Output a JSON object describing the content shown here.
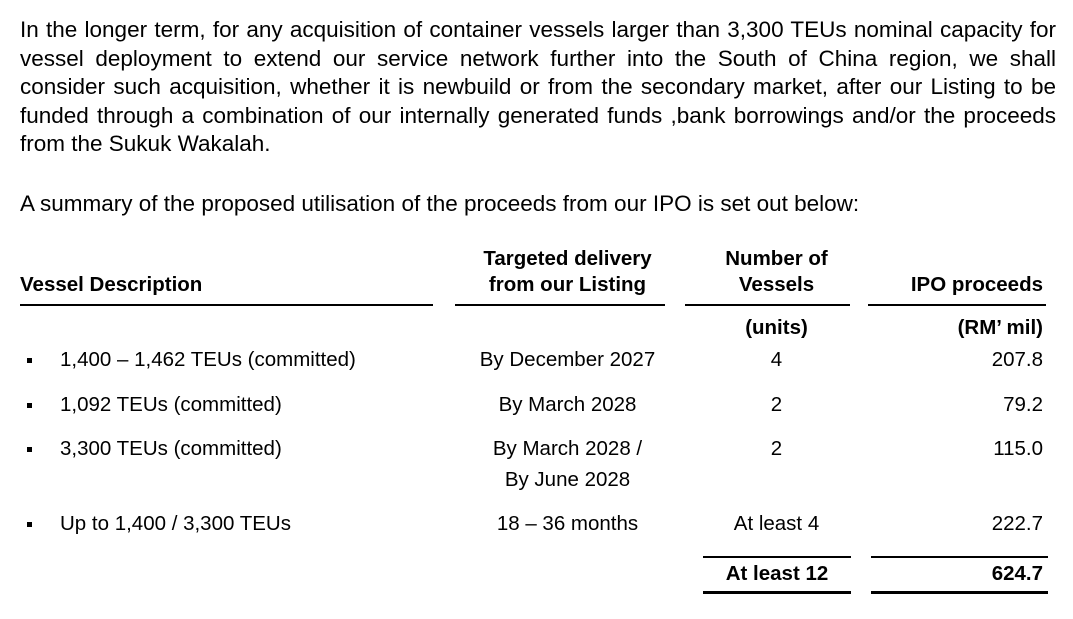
{
  "paragraphs": [
    "In the longer term, for any acquisition of container vessels larger than 3,300 TEUs nominal capacity for vessel deployment to extend our service network further into the South of China region, we shall consider such acquisition, whether it is newbuild or from the secondary market, after our Listing to be funded through a combination of our internally generated funds ,bank borrowings and/or the proceeds from the Sukuk Wakalah.",
    "A summary of the proposed utilisation of the proceeds from our IPO is set out below:"
  ],
  "table": {
    "headers": {
      "description": "Vessel Description",
      "delivery_1": "Targeted delivery",
      "delivery_2": "from our Listing",
      "vessels_1": "Number of",
      "vessels_2": "Vessels",
      "proceeds": "IPO proceeds"
    },
    "units": {
      "vessels": "(units)",
      "proceeds": "(RM’ mil)"
    },
    "rows": [
      {
        "description": "1,400 – 1,462 TEUs (committed)",
        "delivery": "By December 2027",
        "delivery_2": "",
        "vessels": "4",
        "proceeds": "207.8"
      },
      {
        "description": "1,092 TEUs (committed)",
        "delivery": "By March 2028",
        "delivery_2": "",
        "vessels": "2",
        "proceeds": "79.2"
      },
      {
        "description": "3,300 TEUs (committed)",
        "delivery": "By March 2028 /",
        "delivery_2": "By June 2028",
        "vessels": "2",
        "proceeds": "115.0"
      },
      {
        "description": "Up to 1,400 / 3,300 TEUs",
        "delivery": "18 – 36 months",
        "delivery_2": "",
        "vessels": "At least 4",
        "proceeds": "222.7"
      }
    ],
    "total": {
      "vessels": "At least 12",
      "proceeds": "624.7"
    }
  }
}
